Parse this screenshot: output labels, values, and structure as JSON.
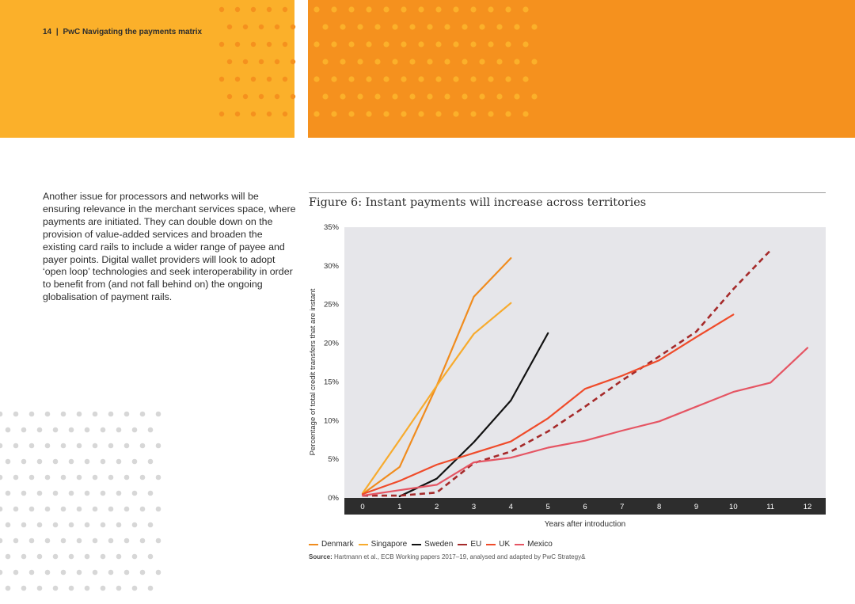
{
  "header": {
    "page_number": "14",
    "separator": "|",
    "title": "PwC Navigating the payments matrix"
  },
  "body_text": "Another issue for processors and networks will be ensuring relevance in the merchant services space, where payments are initiated. They can double down on the provision of value-added services and broaden the existing card rails to include a wider range of payee and payer points. Digital wallet providers will look to adopt ‘open loop’ technologies and seek interoperability in order to benefit from (and not fall behind on) the ongoing globalisation of payment rails.",
  "figure": {
    "title": "Figure 6: Instant payments will increase across territories",
    "source_label": "Source:",
    "source_text": "Hartmann et al., ECB Working papers 2017–19, analysed and adapted by PwC Strategy&"
  },
  "colors": {
    "banner_left": "#fbb02a",
    "banner_right": "#f5911e",
    "plot_bg": "#e6e6ea",
    "axis_band": "#2d2d2d",
    "dot_grey": "#d7d7d7"
  },
  "chart_data": {
    "type": "line",
    "xlabel": "Years after introduction",
    "ylabel": "Percentage of total credit transfers that are instant",
    "x_ticks": [
      "0",
      "1",
      "2",
      "3",
      "4",
      "5",
      "6",
      "7",
      "8",
      "9",
      "10",
      "11",
      "12"
    ],
    "y_ticks": [
      "0%",
      "5%",
      "10%",
      "15%",
      "20%",
      "25%",
      "30%",
      "35%"
    ],
    "xlim": [
      0,
      12
    ],
    "ylim": [
      0,
      35
    ],
    "grid": false,
    "legend_position": "bottom-left",
    "series": [
      {
        "name": "Denmark",
        "color": "#f08c1e",
        "dashed": false,
        "points": [
          [
            0,
            0.5
          ],
          [
            1,
            4.0
          ],
          [
            2,
            14.5
          ],
          [
            3,
            26.0
          ],
          [
            4,
            31.0
          ]
        ]
      },
      {
        "name": "Singapore",
        "color": "#f7ab2e",
        "dashed": false,
        "points": [
          [
            0,
            0.6
          ],
          [
            1,
            7.5
          ],
          [
            2,
            14.5
          ],
          [
            3,
            21.2
          ],
          [
            4,
            25.2
          ]
        ]
      },
      {
        "name": "Sweden",
        "color": "#111111",
        "dashed": false,
        "points": [
          [
            1,
            0.2
          ],
          [
            2,
            2.5
          ],
          [
            3,
            7.2
          ],
          [
            4,
            12.6
          ],
          [
            5,
            21.3
          ]
        ]
      },
      {
        "name": "EU",
        "color": "#a52a2a",
        "dashed": true,
        "points": [
          [
            0,
            0.3
          ],
          [
            1,
            0.3
          ],
          [
            2,
            0.7
          ],
          [
            3,
            4.5
          ],
          [
            4,
            6.0
          ],
          [
            5,
            8.6
          ],
          [
            6,
            11.8
          ],
          [
            7,
            15.2
          ],
          [
            8,
            18.3
          ],
          [
            9,
            21.5
          ],
          [
            10,
            27.0
          ],
          [
            11,
            32.0
          ]
        ]
      },
      {
        "name": "UK",
        "color": "#ef4b2a",
        "dashed": false,
        "points": [
          [
            0,
            0.5
          ],
          [
            1,
            2.2
          ],
          [
            2,
            4.3
          ],
          [
            3,
            5.8
          ],
          [
            4,
            7.3
          ],
          [
            5,
            10.3
          ],
          [
            6,
            14.1
          ],
          [
            7,
            15.8
          ],
          [
            8,
            17.8
          ],
          [
            9,
            20.8
          ],
          [
            10,
            23.7
          ]
        ]
      },
      {
        "name": "Mexico",
        "color": "#e55563",
        "dashed": false,
        "points": [
          [
            0,
            0.3
          ],
          [
            1,
            1.0
          ],
          [
            2,
            1.7
          ],
          [
            3,
            4.6
          ],
          [
            4,
            5.2
          ],
          [
            5,
            6.5
          ],
          [
            6,
            7.4
          ],
          [
            7,
            8.7
          ],
          [
            8,
            9.9
          ],
          [
            9,
            11.8
          ],
          [
            10,
            13.7
          ],
          [
            11,
            14.9
          ],
          [
            12,
            19.4
          ]
        ]
      }
    ]
  }
}
